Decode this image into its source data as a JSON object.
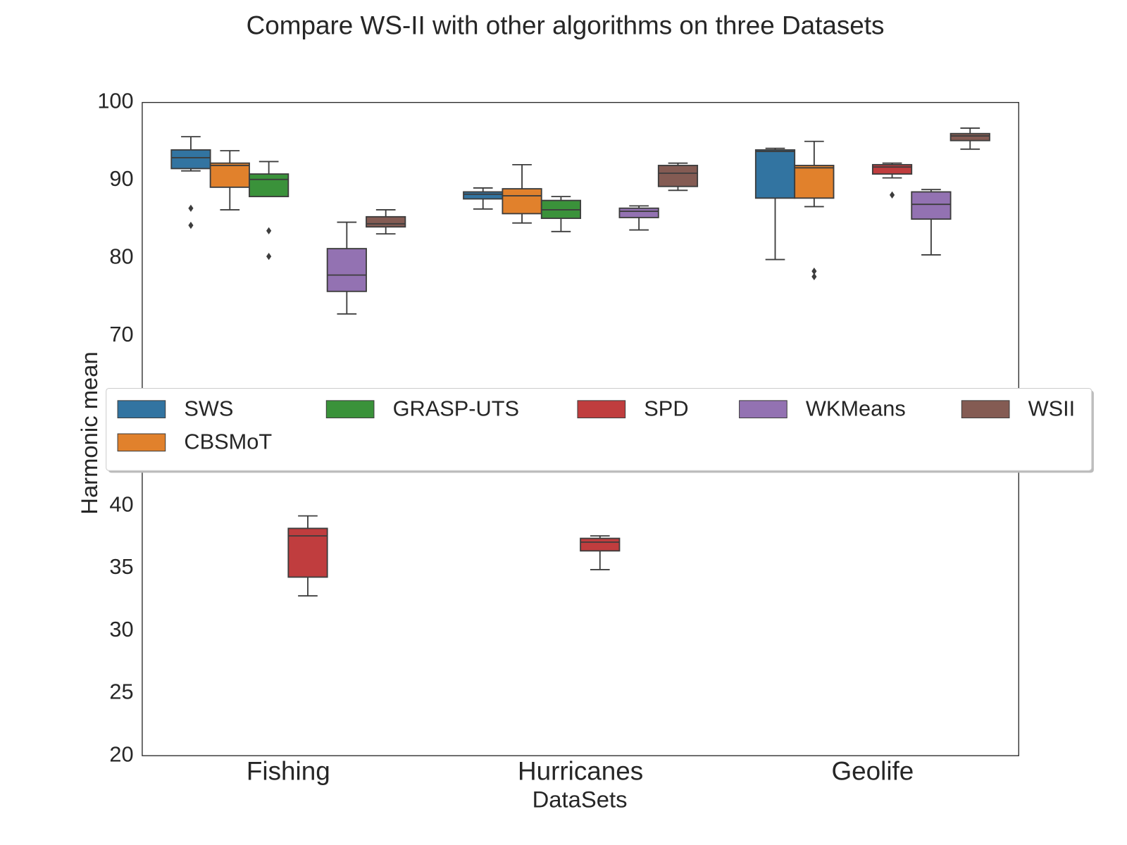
{
  "chart_data": {
    "type": "box",
    "title": "Compare WS-II with other algorithms on three Datasets",
    "x_label": "DataSets",
    "y_label": "Harmonic mean",
    "categories": [
      "Fishing",
      "Hurricanes",
      "Geolife"
    ],
    "ylim": [
      20,
      100
    ],
    "axis_break": [
      43,
      63
    ],
    "yticks": [
      20,
      25,
      30,
      35,
      40,
      70,
      80,
      90,
      100
    ],
    "grid": false,
    "legend_position": "center",
    "series": [
      {
        "name": "SWS",
        "color": "#3274a1",
        "values": [
          {
            "min": 91.2,
            "q1": 91.5,
            "median": 92.9,
            "q3": 93.9,
            "max": 95.6,
            "outliers": [
              86.4,
              84.2
            ]
          },
          {
            "min": 86.3,
            "q1": 87.6,
            "median": 88.2,
            "q3": 88.5,
            "max": 89.0,
            "outliers": []
          },
          {
            "min": 79.8,
            "q1": 87.7,
            "median": 93.7,
            "q3": 93.9,
            "max": 94.1,
            "outliers": []
          }
        ]
      },
      {
        "name": "CBSMoT",
        "color": "#e1812c",
        "values": [
          {
            "min": 86.2,
            "q1": 89.1,
            "median": 91.9,
            "q3": 92.2,
            "max": 93.8,
            "outliers": []
          },
          {
            "min": 84.5,
            "q1": 85.7,
            "median": 88.0,
            "q3": 88.9,
            "max": 92.0,
            "outliers": []
          },
          {
            "min": 86.6,
            "q1": 87.7,
            "median": 91.6,
            "q3": 91.9,
            "max": 95.0,
            "outliers": [
              78.3,
              77.6
            ]
          }
        ]
      },
      {
        "name": "GRASP-UTS",
        "color": "#3a923a",
        "values": [
          {
            "min": 87.9,
            "q1": 87.9,
            "median": 90.1,
            "q3": 90.8,
            "max": 92.4,
            "outliers": [
              83.5,
              80.2
            ]
          },
          {
            "min": 83.4,
            "q1": 85.1,
            "median": 86.2,
            "q3": 87.4,
            "max": 87.9,
            "outliers": []
          },
          null
        ]
      },
      {
        "name": "SPD",
        "color": "#c03d3e",
        "values": [
          {
            "min": 32.8,
            "q1": 34.3,
            "median": 37.6,
            "q3": 38.2,
            "max": 39.2,
            "outliers": []
          },
          {
            "min": 34.9,
            "q1": 36.4,
            "median": 37.1,
            "q3": 37.4,
            "max": 37.6,
            "outliers": []
          },
          {
            "min": 90.3,
            "q1": 90.8,
            "median": 91.7,
            "q3": 92.0,
            "max": 92.2,
            "outliers": [
              88.1
            ]
          }
        ]
      },
      {
        "name": "WKMeans",
        "color": "#9372b2",
        "values": [
          {
            "min": 72.8,
            "q1": 75.7,
            "median": 77.8,
            "q3": 81.2,
            "max": 84.6,
            "outliers": []
          },
          {
            "min": 83.6,
            "q1": 85.2,
            "median": 86.0,
            "q3": 86.4,
            "max": 86.7,
            "outliers": []
          },
          {
            "min": 80.4,
            "q1": 85.0,
            "median": 86.9,
            "q3": 88.5,
            "max": 88.8,
            "outliers": []
          }
        ]
      },
      {
        "name": "WSII",
        "color": "#845b53",
        "values": [
          {
            "min": 83.1,
            "q1": 84.0,
            "median": 84.4,
            "q3": 85.3,
            "max": 86.2,
            "outliers": []
          },
          {
            "min": 88.7,
            "q1": 89.2,
            "median": 90.9,
            "q3": 91.9,
            "max": 92.2,
            "outliers": []
          },
          {
            "min": 94.0,
            "q1": 95.1,
            "median": 95.7,
            "q3": 96.0,
            "max": 96.7,
            "outliers": []
          }
        ]
      }
    ]
  }
}
